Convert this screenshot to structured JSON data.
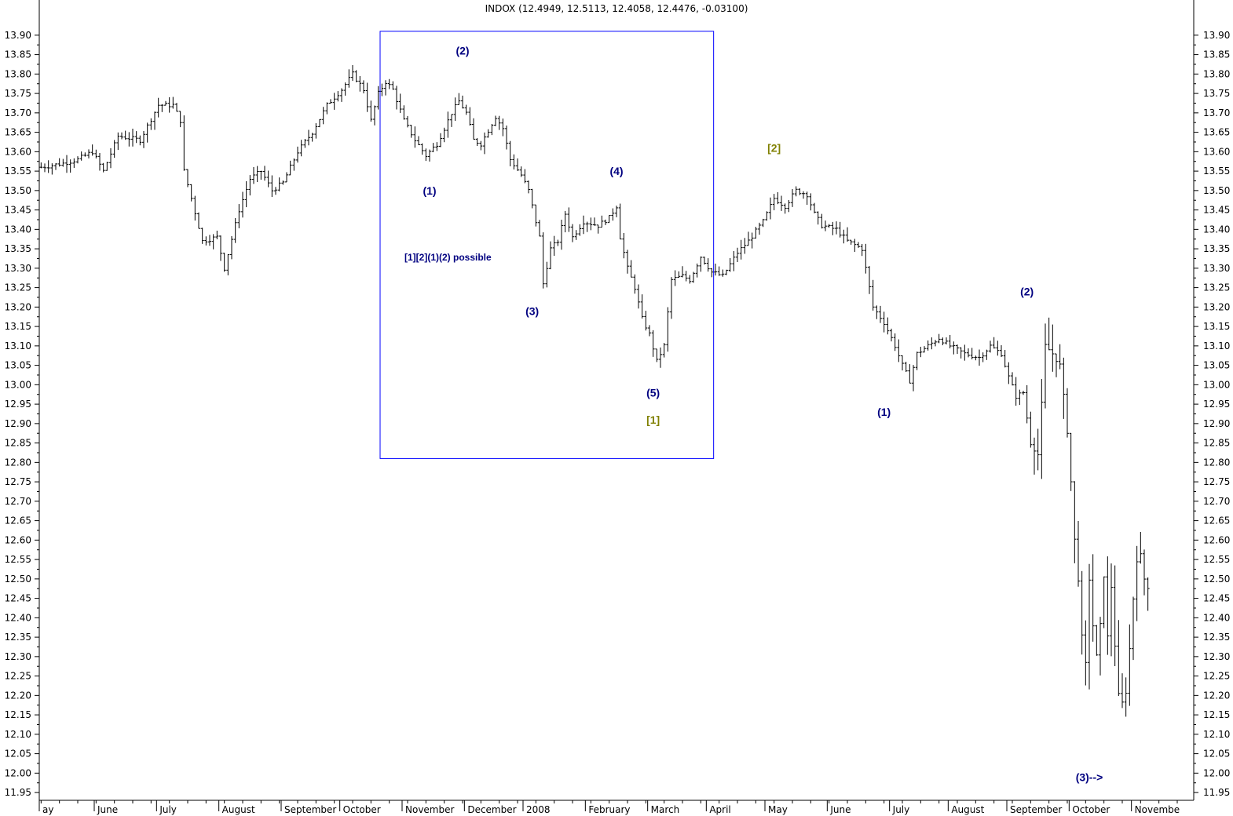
{
  "chart_data": {
    "type": "line",
    "title": "INDOX (12.4949, 12.5113, 12.4058, 12.4476, -0.03100)",
    "style": "ohlc-bars",
    "ylim": [
      11.93,
      13.93
    ],
    "y_ticks": [
      "13.90",
      "13.85",
      "13.80",
      "13.75",
      "13.70",
      "13.65",
      "13.60",
      "13.55",
      "13.50",
      "13.45",
      "13.40",
      "13.35",
      "13.30",
      "13.25",
      "13.20",
      "13.15",
      "13.10",
      "13.05",
      "13.00",
      "12.95",
      "12.90",
      "12.85",
      "12.80",
      "12.75",
      "12.70",
      "12.65",
      "12.60",
      "12.55",
      "12.50",
      "12.45",
      "12.40",
      "12.35",
      "12.30",
      "12.25",
      "12.20",
      "12.15",
      "12.10",
      "12.05",
      "12.00",
      "11.95"
    ],
    "x_month_labels": [
      {
        "label": "ay",
        "index": 0
      },
      {
        "label": "June",
        "index": 15
      },
      {
        "label": "July",
        "index": 32
      },
      {
        "label": "August",
        "index": 49
      },
      {
        "label": "September",
        "index": 66
      },
      {
        "label": "October",
        "index": 82
      },
      {
        "label": "November",
        "index": 99
      },
      {
        "label": "December",
        "index": 116
      },
      {
        "label": "2008",
        "index": 132
      },
      {
        "label": "February",
        "index": 149
      },
      {
        "label": "March",
        "index": 166
      },
      {
        "label": "April",
        "index": 182
      },
      {
        "label": "May",
        "index": 198
      },
      {
        "label": "June",
        "index": 215
      },
      {
        "label": "July",
        "index": 232
      },
      {
        "label": "August",
        "index": 248
      },
      {
        "label": "September",
        "index": 264
      },
      {
        "label": "October",
        "index": 281
      },
      {
        "label": "Novembe",
        "index": 298
      }
    ],
    "x_count": 315,
    "series": [
      {
        "anchors": [
          [
            0,
            13.56
          ],
          [
            6,
            13.57
          ],
          [
            10,
            13.58
          ],
          [
            14,
            13.6
          ],
          [
            17,
            13.55
          ],
          [
            21,
            13.64
          ],
          [
            27,
            13.63
          ],
          [
            32,
            13.72
          ],
          [
            36,
            13.72
          ],
          [
            38,
            13.68
          ],
          [
            39,
            13.55
          ],
          [
            41,
            13.48
          ],
          [
            44,
            13.37
          ],
          [
            48,
            13.38
          ],
          [
            50,
            13.3
          ],
          [
            54,
            13.45
          ],
          [
            57,
            13.53
          ],
          [
            60,
            13.55
          ],
          [
            63,
            13.5
          ],
          [
            66,
            13.52
          ],
          [
            70,
            13.6
          ],
          [
            74,
            13.65
          ],
          [
            78,
            13.72
          ],
          [
            82,
            13.76
          ],
          [
            85,
            13.8
          ],
          [
            88,
            13.76
          ],
          [
            90,
            13.68
          ],
          [
            92,
            13.75
          ],
          [
            94,
            13.78
          ],
          [
            96,
            13.76
          ],
          [
            99,
            13.68
          ],
          [
            102,
            13.63
          ],
          [
            105,
            13.59
          ],
          [
            108,
            13.62
          ],
          [
            112,
            13.7
          ],
          [
            114,
            13.73
          ],
          [
            116,
            13.7
          ],
          [
            118,
            13.63
          ],
          [
            120,
            13.62
          ],
          [
            124,
            13.69
          ],
          [
            126,
            13.66
          ],
          [
            128,
            13.58
          ],
          [
            131,
            13.54
          ],
          [
            133,
            13.5
          ],
          [
            136,
            13.38
          ],
          [
            137,
            13.26
          ],
          [
            139,
            13.35
          ],
          [
            141,
            13.37
          ],
          [
            143,
            13.44
          ],
          [
            145,
            13.38
          ],
          [
            148,
            13.42
          ],
          [
            152,
            13.41
          ],
          [
            155,
            13.43
          ],
          [
            157,
            13.46
          ],
          [
            158,
            13.38
          ],
          [
            160,
            13.3
          ],
          [
            162,
            13.25
          ],
          [
            164,
            13.17
          ],
          [
            166,
            13.13
          ],
          [
            168,
            13.06
          ],
          [
            170,
            13.1
          ],
          [
            172,
            13.27
          ],
          [
            175,
            13.28
          ],
          [
            177,
            13.27
          ],
          [
            180,
            13.33
          ],
          [
            183,
            13.29
          ],
          [
            186,
            13.28
          ],
          [
            190,
            13.34
          ],
          [
            193,
            13.37
          ],
          [
            197,
            13.42
          ],
          [
            200,
            13.48
          ],
          [
            203,
            13.46
          ],
          [
            206,
            13.5
          ],
          [
            209,
            13.49
          ],
          [
            211,
            13.44
          ],
          [
            213,
            13.41
          ],
          [
            217,
            13.4
          ],
          [
            220,
            13.37
          ],
          [
            224,
            13.35
          ],
          [
            227,
            13.2
          ],
          [
            230,
            13.16
          ],
          [
            233,
            13.1
          ],
          [
            235,
            13.05
          ],
          [
            237,
            13.01
          ],
          [
            239,
            13.08
          ],
          [
            242,
            13.1
          ],
          [
            245,
            13.12
          ],
          [
            248,
            13.1
          ],
          [
            252,
            13.08
          ],
          [
            256,
            13.07
          ],
          [
            259,
            13.1
          ],
          [
            262,
            13.08
          ],
          [
            264,
            13.02
          ],
          [
            266,
            12.97
          ],
          [
            268,
            12.98
          ],
          [
            270,
            12.85
          ],
          [
            272,
            12.82
          ],
          [
            273,
            12.95
          ],
          [
            274,
            13.1
          ],
          [
            276,
            13.08
          ],
          [
            278,
            13.05
          ],
          [
            279,
            12.97
          ],
          [
            280,
            12.88
          ],
          [
            281,
            12.75
          ],
          [
            282,
            12.6
          ],
          [
            283,
            12.5
          ],
          [
            284,
            12.35
          ],
          [
            285,
            12.28
          ],
          [
            286,
            12.5
          ],
          [
            287,
            12.38
          ],
          [
            288,
            12.3
          ],
          [
            289,
            12.38
          ],
          [
            290,
            12.51
          ],
          [
            291,
            12.35
          ],
          [
            292,
            12.48
          ],
          [
            293,
            12.33
          ],
          [
            294,
            12.2
          ],
          [
            295,
            12.18
          ],
          [
            296,
            12.21
          ],
          [
            297,
            12.32
          ],
          [
            298,
            12.45
          ],
          [
            299,
            12.55
          ],
          [
            300,
            12.56
          ],
          [
            301,
            12.5
          ],
          [
            302,
            12.48
          ]
        ]
      }
    ],
    "box": {
      "x_start": 93,
      "x_end": 184,
      "y_top": 13.91,
      "y_bottom": 12.81
    },
    "annotations": [
      {
        "text": "(2)",
        "x": 115,
        "y": 13.86,
        "color": "navy"
      },
      {
        "text": "(1)",
        "x": 106,
        "y": 13.5,
        "color": "navy"
      },
      {
        "text": "[1][2](1)(2) possible",
        "x": 111,
        "y": 13.33,
        "color": "navy",
        "size": "small"
      },
      {
        "text": "(4)",
        "x": 157,
        "y": 13.55,
        "color": "navy"
      },
      {
        "text": "(3)",
        "x": 134,
        "y": 13.19,
        "color": "navy"
      },
      {
        "text": "(5)",
        "x": 167,
        "y": 12.98,
        "color": "navy"
      },
      {
        "text": "[1]",
        "x": 167,
        "y": 12.91,
        "color": "olive"
      },
      {
        "text": "[2]",
        "x": 200,
        "y": 13.61,
        "color": "olive"
      },
      {
        "text": "(1)",
        "x": 230,
        "y": 12.93,
        "color": "navy"
      },
      {
        "text": "(2)",
        "x": 269,
        "y": 13.24,
        "color": "navy"
      },
      {
        "text": "(3)-->",
        "x": 286,
        "y": 11.99,
        "color": "navy"
      }
    ]
  }
}
